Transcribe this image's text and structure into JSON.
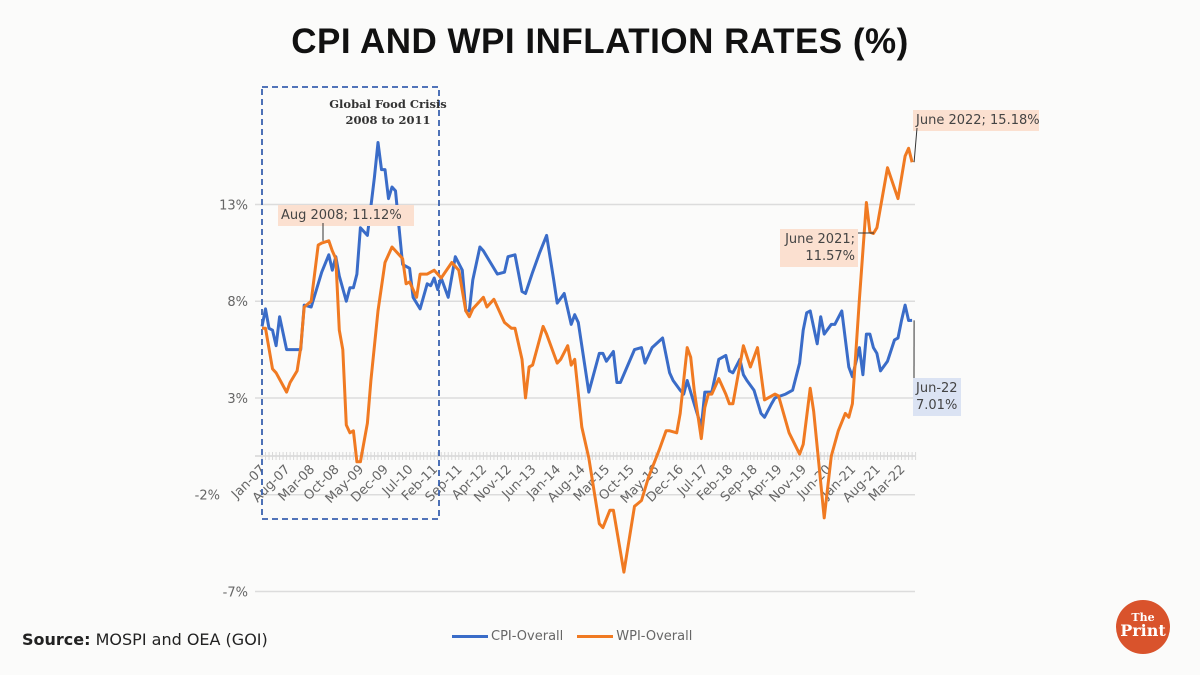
{
  "header": {
    "title": "CPI AND WPI INFLATION RATES (%)"
  },
  "source": {
    "label": "Source:",
    "text": "MOSPI and OEA (GOI)"
  },
  "logo": {
    "line1": "The",
    "line2": "Print",
    "color": "#d9532c"
  },
  "chart_data": {
    "type": "line",
    "title": "CPI AND WPI INFLATION RATES (%)",
    "xlabel": "",
    "ylabel": "",
    "x_range": [
      "2007-01",
      "2022-06"
    ],
    "ylim": [
      -7,
      18
    ],
    "y_ticks": [
      13,
      8,
      3,
      -2,
      -7
    ],
    "y_tick_labels": [
      "13%",
      "8%",
      "3%",
      "-2%",
      "-7%"
    ],
    "x_tick_labels": [
      "Jan-07",
      "Aug-07",
      "Mar-08",
      "Oct-08",
      "May-09",
      "Dec-09",
      "Jul-10",
      "Feb-11",
      "Sep-11",
      "Apr-12",
      "Nov-12",
      "Jun-13",
      "Jan-14",
      "Aug-14",
      "Mar-15",
      "Oct-15",
      "May-16",
      "Dec-16",
      "Jul-17",
      "Feb-18",
      "Sep-18",
      "Apr-19",
      "Nov-19",
      "Jun-20",
      "Jan-21",
      "Aug-21",
      "Mar-22"
    ],
    "grid": true,
    "legend": "bottom",
    "series": [
      {
        "name": "CPI-Overall",
        "color": "#3a6cc8",
        "points": [
          [
            "2007-01",
            6.7
          ],
          [
            "2007-02",
            7.6
          ],
          [
            "2007-03",
            6.6
          ],
          [
            "2007-04",
            6.5
          ],
          [
            "2007-05",
            5.7
          ],
          [
            "2007-06",
            7.2
          ],
          [
            "2007-08",
            5.5
          ],
          [
            "2007-12",
            5.5
          ],
          [
            "2008-01",
            7.8
          ],
          [
            "2008-03",
            7.7
          ],
          [
            "2008-06",
            9.5
          ],
          [
            "2008-08",
            10.4
          ],
          [
            "2008-09",
            9.6
          ],
          [
            "2008-10",
            10.3
          ],
          [
            "2008-11",
            9.3
          ],
          [
            "2009-01",
            8.0
          ],
          [
            "2009-02",
            8.7
          ],
          [
            "2009-03",
            8.7
          ],
          [
            "2009-04",
            9.4
          ],
          [
            "2009-05",
            11.8
          ],
          [
            "2009-07",
            11.4
          ],
          [
            "2009-09",
            14.4
          ],
          [
            "2009-10",
            16.2
          ],
          [
            "2009-11",
            14.8
          ],
          [
            "2009-12",
            14.8
          ],
          [
            "2010-01",
            13.3
          ],
          [
            "2010-02",
            13.9
          ],
          [
            "2010-03",
            13.7
          ],
          [
            "2010-05",
            9.9
          ],
          [
            "2010-07",
            9.7
          ],
          [
            "2010-08",
            8.2
          ],
          [
            "2010-10",
            7.6
          ],
          [
            "2010-12",
            8.9
          ],
          [
            "2011-01",
            8.8
          ],
          [
            "2011-02",
            9.2
          ],
          [
            "2011-03",
            8.6
          ],
          [
            "2011-04",
            9.2
          ],
          [
            "2011-06",
            8.2
          ],
          [
            "2011-08",
            10.3
          ],
          [
            "2011-10",
            9.6
          ],
          [
            "2011-11",
            7.5
          ],
          [
            "2011-12",
            7.5
          ],
          [
            "2012-01",
            9.1
          ],
          [
            "2012-03",
            10.8
          ],
          [
            "2012-04",
            10.6
          ],
          [
            "2012-06",
            10.0
          ],
          [
            "2012-08",
            9.4
          ],
          [
            "2012-10",
            9.5
          ],
          [
            "2012-11",
            10.3
          ],
          [
            "2013-01",
            10.4
          ],
          [
            "2013-03",
            8.5
          ],
          [
            "2013-04",
            8.4
          ],
          [
            "2013-06",
            9.5
          ],
          [
            "2013-07",
            10.0
          ],
          [
            "2013-08",
            10.5
          ],
          [
            "2013-10",
            11.4
          ],
          [
            "2013-12",
            9.1
          ],
          [
            "2014-01",
            7.9
          ],
          [
            "2014-03",
            8.4
          ],
          [
            "2014-05",
            6.8
          ],
          [
            "2014-06",
            7.3
          ],
          [
            "2014-07",
            6.9
          ],
          [
            "2014-10",
            3.3
          ],
          [
            "2015-01",
            5.3
          ],
          [
            "2015-02",
            5.3
          ],
          [
            "2015-03",
            4.9
          ],
          [
            "2015-05",
            5.4
          ],
          [
            "2015-06",
            3.8
          ],
          [
            "2015-07",
            3.8
          ],
          [
            "2015-11",
            5.5
          ],
          [
            "2016-01",
            5.6
          ],
          [
            "2016-02",
            4.8
          ],
          [
            "2016-04",
            5.6
          ],
          [
            "2016-07",
            6.1
          ],
          [
            "2016-09",
            4.3
          ],
          [
            "2016-10",
            3.9
          ],
          [
            "2016-12",
            3.4
          ],
          [
            "2017-01",
            3.2
          ],
          [
            "2017-02",
            3.9
          ],
          [
            "2017-04",
            2.7
          ],
          [
            "2017-06",
            1.5
          ],
          [
            "2017-07",
            3.3
          ],
          [
            "2017-09",
            3.3
          ],
          [
            "2017-11",
            5.0
          ],
          [
            "2018-01",
            5.2
          ],
          [
            "2018-02",
            4.4
          ],
          [
            "2018-03",
            4.3
          ],
          [
            "2018-05",
            5.0
          ],
          [
            "2018-06",
            4.2
          ],
          [
            "2018-07",
            3.9
          ],
          [
            "2018-09",
            3.4
          ],
          [
            "2018-11",
            2.2
          ],
          [
            "2018-12",
            2.0
          ],
          [
            "2019-02",
            2.7
          ],
          [
            "2019-03",
            3.0
          ],
          [
            "2019-06",
            3.2
          ],
          [
            "2019-08",
            3.4
          ],
          [
            "2019-10",
            4.8
          ],
          [
            "2019-11",
            6.5
          ],
          [
            "2019-12",
            7.4
          ],
          [
            "2020-01",
            7.5
          ],
          [
            "2020-03",
            5.8
          ],
          [
            "2020-04",
            7.2
          ],
          [
            "2020-05",
            6.3
          ],
          [
            "2020-07",
            6.8
          ],
          [
            "2020-08",
            6.8
          ],
          [
            "2020-10",
            7.5
          ],
          [
            "2020-12",
            4.6
          ],
          [
            "2021-01",
            4.1
          ],
          [
            "2021-03",
            5.6
          ],
          [
            "2021-04",
            4.2
          ],
          [
            "2021-05",
            6.3
          ],
          [
            "2021-06",
            6.3
          ],
          [
            "2021-07",
            5.6
          ],
          [
            "2021-08",
            5.3
          ],
          [
            "2021-09",
            4.4
          ],
          [
            "2021-11",
            4.9
          ],
          [
            "2022-01",
            6.0
          ],
          [
            "2022-02",
            6.1
          ],
          [
            "2022-03",
            7.0
          ],
          [
            "2022-04",
            7.8
          ],
          [
            "2022-05",
            7.0
          ],
          [
            "2022-06",
            7.01
          ]
        ]
      },
      {
        "name": "WPI-Overall",
        "color": "#f07a22",
        "points": [
          [
            "2007-01",
            6.6
          ],
          [
            "2007-02",
            6.6
          ],
          [
            "2007-04",
            4.5
          ],
          [
            "2007-05",
            4.3
          ],
          [
            "2007-08",
            3.3
          ],
          [
            "2007-09",
            3.8
          ],
          [
            "2007-11",
            4.4
          ],
          [
            "2007-12",
            5.6
          ],
          [
            "2008-01",
            7.7
          ],
          [
            "2008-03",
            8.0
          ],
          [
            "2008-05",
            10.9
          ],
          [
            "2008-06",
            11.0
          ],
          [
            "2008-08",
            11.12
          ],
          [
            "2008-09",
            10.6
          ],
          [
            "2008-10",
            10.2
          ],
          [
            "2008-11",
            6.5
          ],
          [
            "2008-12",
            5.5
          ],
          [
            "2009-01",
            1.6
          ],
          [
            "2009-02",
            1.2
          ],
          [
            "2009-03",
            1.3
          ],
          [
            "2009-04",
            -0.3
          ],
          [
            "2009-05",
            -0.3
          ],
          [
            "2009-07",
            1.7
          ],
          [
            "2009-08",
            3.9
          ],
          [
            "2009-10",
            7.5
          ],
          [
            "2009-12",
            10.0
          ],
          [
            "2010-02",
            10.8
          ],
          [
            "2010-05",
            10.2
          ],
          [
            "2010-06",
            8.9
          ],
          [
            "2010-07",
            9.0
          ],
          [
            "2010-09",
            8.2
          ],
          [
            "2010-10",
            9.4
          ],
          [
            "2010-12",
            9.4
          ],
          [
            "2011-02",
            9.6
          ],
          [
            "2011-04",
            9.2
          ],
          [
            "2011-07",
            10.0
          ],
          [
            "2011-09",
            9.6
          ],
          [
            "2011-11",
            7.5
          ],
          [
            "2011-12",
            7.2
          ],
          [
            "2012-01",
            7.6
          ],
          [
            "2012-04",
            8.2
          ],
          [
            "2012-05",
            7.7
          ],
          [
            "2012-07",
            8.1
          ],
          [
            "2012-10",
            6.9
          ],
          [
            "2012-12",
            6.6
          ],
          [
            "2013-01",
            6.6
          ],
          [
            "2013-03",
            5.0
          ],
          [
            "2013-04",
            3.0
          ],
          [
            "2013-05",
            4.6
          ],
          [
            "2013-06",
            4.7
          ],
          [
            "2013-09",
            6.7
          ],
          [
            "2013-10",
            6.3
          ],
          [
            "2014-01",
            4.8
          ],
          [
            "2014-02",
            5.0
          ],
          [
            "2014-04",
            5.7
          ],
          [
            "2014-05",
            4.7
          ],
          [
            "2014-06",
            5.0
          ],
          [
            "2014-08",
            1.5
          ],
          [
            "2014-10",
            -0.1
          ],
          [
            "2015-01",
            -3.5
          ],
          [
            "2015-02",
            -3.7
          ],
          [
            "2015-04",
            -2.8
          ],
          [
            "2015-05",
            -2.8
          ],
          [
            "2015-08",
            -6.0
          ],
          [
            "2015-11",
            -2.6
          ],
          [
            "2016-01",
            -2.3
          ],
          [
            "2016-03",
            -1.1
          ],
          [
            "2016-06",
            0.3
          ],
          [
            "2016-08",
            1.3
          ],
          [
            "2016-09",
            1.3
          ],
          [
            "2016-11",
            1.2
          ],
          [
            "2016-12",
            2.2
          ],
          [
            "2017-02",
            5.6
          ],
          [
            "2017-03",
            5.1
          ],
          [
            "2017-04",
            3.4
          ],
          [
            "2017-06",
            0.9
          ],
          [
            "2017-07",
            2.5
          ],
          [
            "2017-08",
            3.2
          ],
          [
            "2017-09",
            3.2
          ],
          [
            "2017-11",
            4.0
          ],
          [
            "2018-01",
            3.2
          ],
          [
            "2018-02",
            2.7
          ],
          [
            "2018-03",
            2.7
          ],
          [
            "2018-06",
            5.7
          ],
          [
            "2018-08",
            4.6
          ],
          [
            "2018-10",
            5.6
          ],
          [
            "2018-12",
            2.9
          ],
          [
            "2019-03",
            3.2
          ],
          [
            "2019-04",
            3.1
          ],
          [
            "2019-07",
            1.2
          ],
          [
            "2019-10",
            0.1
          ],
          [
            "2019-11",
            0.6
          ],
          [
            "2020-01",
            3.5
          ],
          [
            "2020-02",
            2.3
          ],
          [
            "2020-05",
            -3.2
          ],
          [
            "2020-07",
            0.0
          ],
          [
            "2020-09",
            1.3
          ],
          [
            "2020-11",
            2.2
          ],
          [
            "2020-12",
            2.0
          ],
          [
            "2021-01",
            2.7
          ],
          [
            "2021-03",
            8.1
          ],
          [
            "2021-05",
            13.1
          ],
          [
            "2021-06",
            11.57
          ],
          [
            "2021-07",
            11.5
          ],
          [
            "2021-08",
            11.8
          ],
          [
            "2021-11",
            14.9
          ],
          [
            "2022-02",
            13.3
          ],
          [
            "2022-04",
            15.5
          ],
          [
            "2022-05",
            15.9
          ],
          [
            "2022-06",
            15.18
          ]
        ]
      }
    ],
    "annotations": [
      {
        "id": "food_crisis",
        "lines": [
          "Global Food Crisis",
          "2008 to 2011"
        ],
        "range": [
          "2007-01",
          "2011-09"
        ],
        "style": "dashed-box",
        "color": "#3a62b0"
      },
      {
        "id": "wpi_aug08",
        "text": "Aug 2008; 11.12%",
        "date": "2008-08",
        "value": 11.12,
        "bg": "#fbe0d0"
      },
      {
        "id": "wpi_jun22",
        "text": "June 2022; 15.18%",
        "date": "2022-06",
        "value": 15.18,
        "bg": "#fbe0d0"
      },
      {
        "id": "wpi_jun21",
        "lines": [
          "June 2021;",
          "11.57%"
        ],
        "date": "2021-06",
        "value": 11.57,
        "bg": "#fbe0d0"
      },
      {
        "id": "cpi_jun22",
        "lines": [
          "Jun-22",
          "7.01%"
        ],
        "date": "2022-06",
        "value": 7.01,
        "bg": "#dbe3f3"
      }
    ]
  }
}
